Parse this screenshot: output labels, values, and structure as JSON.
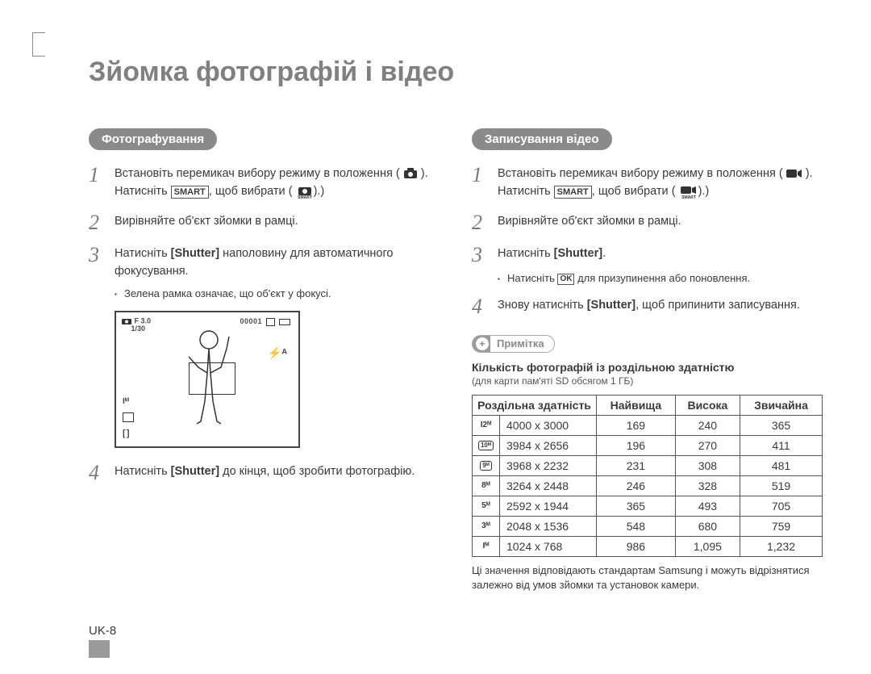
{
  "title": "Зйомка фотографій і відео",
  "page_number": "UK-8",
  "left": {
    "heading": "Фотографування",
    "step1_a": "Встановіть перемикач вибору режиму в положення (",
    "step1_b": ").",
    "step1_c": "Натисніть ",
    "smart_label": "SMART",
    "step1_d": ", щоб вибрати (",
    "step1_e": ").)",
    "step2": "Вирівняйте об'єкт зйомки в рамці.",
    "step3_a": "Натисніть ",
    "shutter": "[Shutter]",
    "step3_b": " наполовину для автоматичного фокусування.",
    "bullet1": "Зелена рамка означає, що об'єкт у фокусі.",
    "preview_top_left_1": "F 3.0",
    "preview_top_left_2": "1/30",
    "preview_counter": "00001",
    "preview_1m": "Iᴹ",
    "step4_a": "Натисніть ",
    "step4_b": " до кінця, щоб зробити фотографію."
  },
  "right": {
    "heading": "Записування відео",
    "step1_a": "Встановіть перемикач вибору режиму в положення (",
    "step1_b": ").",
    "step1_c": "Натисніть ",
    "step1_d": ", щоб вибрати (",
    "step1_e": ").)",
    "step2": "Вирівняйте об'єкт зйомки в рамці.",
    "step3_a": "Натисніть ",
    "step3_b": ".",
    "bullet1_a": "Натисніть ",
    "ok_label": "OK",
    "bullet1_b": " для призупинення або поновлення.",
    "step4_a": "Знову натисніть ",
    "step4_b": ", щоб припинити записування."
  },
  "note": {
    "pill": "Примітка",
    "title": "Кількість фотографій із роздільною здатністю",
    "sub": "(для карти пам'яті SD обсягом 1 ГБ)"
  },
  "table": {
    "headers": [
      "Роздільна здатність",
      "Найвища",
      "Висока",
      "Звичайна"
    ],
    "rows": [
      {
        "icon": "I2ᴹ",
        "boxed": false,
        "res": "4000 x 3000",
        "v": [
          "169",
          "240",
          "365"
        ]
      },
      {
        "icon": "10ᴹ",
        "boxed": true,
        "res": "3984 x 2656",
        "v": [
          "196",
          "270",
          "411"
        ]
      },
      {
        "icon": "9ᴹ",
        "boxed": true,
        "res": "3968 x 2232",
        "v": [
          "231",
          "308",
          "481"
        ]
      },
      {
        "icon": "8ᴹ",
        "boxed": false,
        "res": "3264 x 2448",
        "v": [
          "246",
          "328",
          "519"
        ]
      },
      {
        "icon": "5ᴹ",
        "boxed": false,
        "res": "2592 x 1944",
        "v": [
          "365",
          "493",
          "705"
        ]
      },
      {
        "icon": "3ᴹ",
        "boxed": false,
        "res": "2048 x 1536",
        "v": [
          "548",
          "680",
          "759"
        ]
      },
      {
        "icon": "Iᴹ",
        "boxed": false,
        "res": "1024 x 768",
        "v": [
          "986",
          "1,095",
          "1,232"
        ]
      }
    ]
  },
  "disclaimer": "Ці значення відповідають стандартам Samsung і можуть відрізнятися залежно від умов зйомки та установок камери."
}
